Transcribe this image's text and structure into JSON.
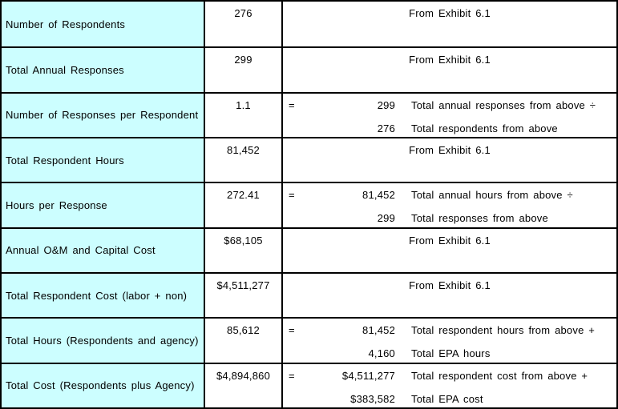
{
  "table": {
    "colors": {
      "label_bg": "#CCFEFF",
      "cell_bg": "#FFFFFF",
      "border": "#000000",
      "text": "#000000"
    },
    "rows": [
      {
        "label": "Number of Respondents",
        "value": "276",
        "note": "From Exhibit 6.1"
      },
      {
        "label": "Total Annual Responses",
        "value": "299",
        "note": "From Exhibit 6.1"
      },
      {
        "label": "Number of Responses per Respondent",
        "value": "1.1",
        "formula": {
          "eq": "=",
          "lines": [
            {
              "num": "299",
              "desc": "Total annual responses from above ÷"
            },
            {
              "num": "276",
              "desc": "Total respondents from above"
            }
          ]
        }
      },
      {
        "label": "Total Respondent Hours",
        "value": "81,452",
        "note": "From Exhibit 6.1"
      },
      {
        "label": "Hours per Response",
        "value": "272.41",
        "formula": {
          "eq": "=",
          "lines": [
            {
              "num": "81,452",
              "desc": "Total annual hours from above ÷"
            },
            {
              "num": "299",
              "desc": "Total responses from above"
            }
          ]
        }
      },
      {
        "label": "Annual O&M and Capital Cost",
        "value": "$68,105",
        "note": "From Exhibit 6.1"
      },
      {
        "label": "Total Respondent Cost (labor + non)",
        "value": "$4,511,277",
        "note": "From Exhibit 6.1"
      },
      {
        "label": "Total Hours (Respondents and agency)",
        "value": "85,612",
        "formula": {
          "eq": "=",
          "lines": [
            {
              "num": "81,452",
              "desc": "Total respondent hours from above +"
            },
            {
              "num": "4,160",
              "desc": "Total EPA hours"
            }
          ]
        }
      },
      {
        "label": "Total Cost (Respondents plus Agency)",
        "value": "$4,894,860",
        "formula": {
          "eq": "=",
          "lines": [
            {
              "num": "$4,511,277",
              "desc": "Total respondent cost from above +"
            },
            {
              "num": "$383,582",
              "desc": "Total EPA cost"
            }
          ]
        }
      }
    ]
  }
}
